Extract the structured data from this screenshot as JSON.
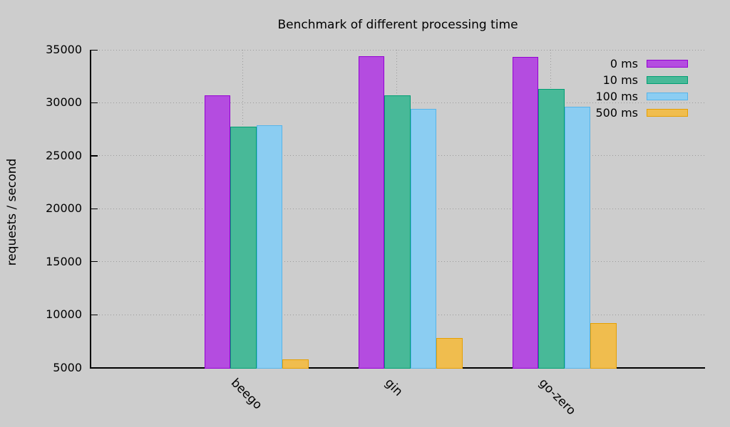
{
  "page": {
    "background": "#cdcdcd"
  },
  "chart_data": {
    "type": "bar",
    "title": "Benchmark of different processing time",
    "ylabel": "requests / second",
    "categories": [
      "beego",
      "gin",
      "go-zero"
    ],
    "series": [
      {
        "name": "0 ms",
        "fill": "#b44ce0",
        "border": "#9400d3",
        "values": [
          30700,
          34400,
          34300
        ]
      },
      {
        "name": "10 ms",
        "fill": "#48b998",
        "border": "#009e73",
        "values": [
          27750,
          30700,
          31300
        ]
      },
      {
        "name": "100 ms",
        "fill": "#8bcdf2",
        "border": "#56b4e9",
        "values": [
          27880,
          29400,
          29600
        ]
      },
      {
        "name": "500 ms",
        "fill": "#f0bd4e",
        "border": "#e69f00",
        "values": [
          5800,
          7800,
          9200
        ]
      }
    ],
    "ylim": [
      5000,
      35000
    ],
    "yticks": [
      5000,
      10000,
      15000,
      20000,
      25000,
      30000,
      35000
    ],
    "grid": "dotted",
    "legend_position": "top-right",
    "axis_color": "#000000",
    "grid_color": "#9a9a9a",
    "text_color": "#000000"
  }
}
